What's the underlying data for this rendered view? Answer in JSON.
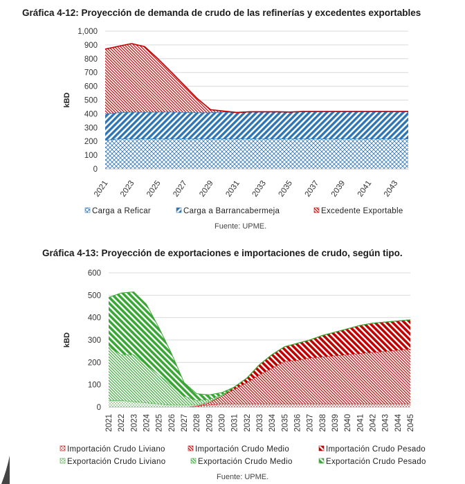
{
  "chart1_title": "Gráfica 4-12: Proyección de demanda de crudo de las refinerías y excedentes exportables",
  "chart1_source": "Fuente: UPME.",
  "chart2_title": "Gráfica 4-13: Proyección de exportaciones e importaciones de crudo, según tipo.",
  "chart2_source": "Fuente: UPME.",
  "colors": {
    "blue": "#2e75b6",
    "red": "#c00000",
    "green": "#3aa635",
    "grid": "#d9d9d9"
  },
  "chart_data": [
    {
      "type": "area",
      "stacked": true,
      "title": "Gráfica 4-12: Proyección de demanda de crudo de las refinerías y excedentes exportables",
      "ylabel": "kBD",
      "ylim": [
        0,
        1000
      ],
      "y_ticks": [
        "0",
        "100",
        "200",
        "300",
        "400",
        "500",
        "600",
        "700",
        "800",
        "900",
        "1,000"
      ],
      "x": [
        2021,
        2022,
        2023,
        2024,
        2025,
        2026,
        2027,
        2028,
        2029,
        2030,
        2031,
        2032,
        2033,
        2034,
        2035,
        2036,
        2037,
        2038,
        2039,
        2040,
        2041,
        2042,
        2043,
        2044
      ],
      "x_tick_labels": [
        "2021",
        "2023",
        "2025",
        "2027",
        "2029",
        "2031",
        "2033",
        "2035",
        "2037",
        "2039",
        "2041",
        "2043"
      ],
      "legend_position": "bottom",
      "grid": true,
      "series": [
        {
          "name": "Carga a Reficar",
          "color": "#2e75b6",
          "pattern": "cross",
          "values": [
            210,
            220,
            220,
            220,
            220,
            220,
            220,
            220,
            220,
            220,
            220,
            220,
            220,
            220,
            220,
            220,
            220,
            220,
            220,
            220,
            220,
            220,
            220,
            220
          ]
        },
        {
          "name": "Carga a Barrancabermeja",
          "color": "#2e75b6",
          "pattern": "diagonal",
          "values": [
            190,
            190,
            195,
            193,
            195,
            195,
            192,
            190,
            190,
            195,
            190,
            195,
            195,
            195,
            193,
            197,
            197,
            197,
            197,
            197,
            197,
            197,
            197,
            197
          ]
        },
        {
          "name": "Excedente Exportable",
          "color": "#c00000",
          "pattern": "fine",
          "values": [
            470,
            480,
            495,
            475,
            385,
            290,
            195,
            100,
            20,
            5,
            0,
            0,
            0,
            0,
            0,
            0,
            0,
            0,
            0,
            0,
            0,
            0,
            0,
            0
          ]
        }
      ]
    },
    {
      "type": "area",
      "stacked": true,
      "title": "Gráfica 4-13: Proyección de exportaciones e importaciones de crudo, según tipo.",
      "ylabel": "kBD",
      "ylim": [
        0,
        600
      ],
      "y_ticks": [
        "0",
        "100",
        "200",
        "300",
        "400",
        "500",
        "600"
      ],
      "x": [
        "2021",
        "2022",
        "2023",
        "2024",
        "2025",
        "2026",
        "2027",
        "2028",
        "2029",
        "2030",
        "2031",
        "2032",
        "2033",
        "2034",
        "2035",
        "2036",
        "2037",
        "2038",
        "2039",
        "2040",
        "2041",
        "2042",
        "2043",
        "2044",
        "2045"
      ],
      "legend_position": "bottom",
      "grid": true,
      "series": [
        {
          "name": "Importación Crudo Liviano",
          "color": "#c00000",
          "pattern": "dotted",
          "values": [
            0,
            0,
            0,
            0,
            0,
            0,
            0,
            5,
            10,
            15,
            15,
            15,
            15,
            15,
            15,
            15,
            15,
            15,
            15,
            15,
            15,
            15,
            15,
            15,
            15
          ]
        },
        {
          "name": "Importación Crudo Medio",
          "color": "#c00000",
          "pattern": "fine",
          "values": [
            0,
            0,
            0,
            0,
            0,
            0,
            0,
            0,
            10,
            35,
            65,
            95,
            130,
            160,
            190,
            195,
            205,
            210,
            215,
            220,
            225,
            230,
            235,
            240,
            245
          ]
        },
        {
          "name": "Importación Crudo Pesado",
          "color": "#c00000",
          "pattern": "wide",
          "values": [
            0,
            0,
            0,
            0,
            0,
            0,
            0,
            0,
            0,
            0,
            10,
            20,
            45,
            60,
            65,
            75,
            80,
            95,
            105,
            115,
            125,
            130,
            130,
            130,
            130
          ]
        },
        {
          "name": "Exportación Crudo Liviano",
          "color": "#3aa635",
          "pattern": "dotted",
          "values": [
            30,
            30,
            25,
            20,
            15,
            10,
            10,
            5,
            5,
            0,
            0,
            0,
            0,
            0,
            0,
            0,
            0,
            0,
            0,
            0,
            0,
            0,
            0,
            0,
            0
          ]
        },
        {
          "name": "Exportación Crudo Medio",
          "color": "#3aa635",
          "pattern": "fine",
          "values": [
            240,
            205,
            210,
            170,
            130,
            90,
            40,
            20,
            10,
            5,
            0,
            0,
            0,
            0,
            0,
            0,
            0,
            0,
            0,
            0,
            0,
            0,
            0,
            0,
            0
          ]
        },
        {
          "name": "Exportación Crudo Pesado",
          "color": "#3aa635",
          "pattern": "wide",
          "values": [
            220,
            275,
            280,
            270,
            210,
            140,
            60,
            30,
            20,
            10,
            0,
            0,
            0,
            0,
            0,
            0,
            0,
            0,
            0,
            0,
            0,
            0,
            0,
            0,
            0
          ]
        }
      ]
    }
  ]
}
